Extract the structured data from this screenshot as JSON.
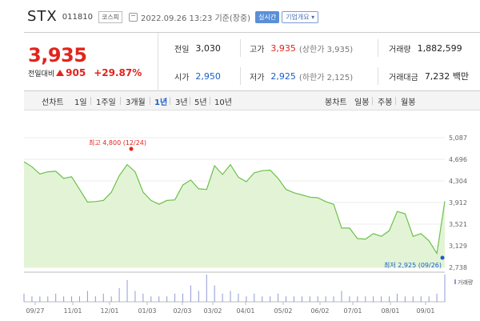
{
  "header": {
    "name": "STX",
    "code": "011810",
    "market": "코스피",
    "datetime": "2022.09.26 13:23 기준(장중)",
    "realtime_btn": "실시간",
    "company_btn": "기업개요 ▾"
  },
  "quote": {
    "price": "3,935",
    "change_label": "전일대비",
    "change": "905",
    "change_pct": "+29.87%",
    "prev_label": "전일",
    "prev": "3,030",
    "high_label": "고가",
    "high": "3,935",
    "upper_limit": "(상한가 3,935)",
    "volume_label": "거래량",
    "volume": "1,882,599",
    "open_label": "시가",
    "open": "2,950",
    "low_label": "저가",
    "low": "2,925",
    "lower_limit": "(하한가 2,125)",
    "amount_label": "거래대금",
    "amount": "7,232 백만"
  },
  "tabs": {
    "line_label": "선차트",
    "periods": [
      "1일",
      "1주일",
      "3개월",
      "1년",
      "3년",
      "5년",
      "10년"
    ],
    "active": "1년",
    "candle_label": "봉차트",
    "candles": [
      "일봉",
      "주봉",
      "월봉"
    ]
  },
  "chart_data": {
    "type": "area",
    "y_ticks": [
      "5,087",
      "4,696",
      "4,304",
      "3,912",
      "3,521",
      "3,129",
      "2,738"
    ],
    "ylim": [
      2738,
      5087
    ],
    "x_ticks": [
      "09/27",
      "11/01",
      "12/01",
      "01/03",
      "02/03",
      "03/02",
      "04/01",
      "05/02",
      "06/02",
      "07/01",
      "08/01",
      "09/01"
    ],
    "high_annotation": "최고 4,800 (12/24)",
    "low_annotation": "최저 2,925 (09/26)",
    "volume_label": "거래량",
    "colors": {
      "line": "#6cc04a",
      "fill": "#e3f4d6",
      "high": "#e2241d",
      "low": "#1a5ec8",
      "volume": "#8f9bd6"
    },
    "x": [
      "09/27",
      "10/01",
      "10/08",
      "10/15",
      "10/22",
      "10/29",
      "11/05",
      "11/12",
      "11/19",
      "11/26",
      "12/03",
      "12/10",
      "12/17",
      "12/24",
      "12/31",
      "01/07",
      "01/14",
      "01/21",
      "01/28",
      "02/04",
      "02/11",
      "02/18",
      "02/25",
      "03/04",
      "03/11",
      "03/18",
      "03/25",
      "04/01",
      "04/08",
      "04/15",
      "04/22",
      "04/29",
      "05/06",
      "05/13",
      "05/20",
      "05/27",
      "06/03",
      "06/10",
      "06/17",
      "06/24",
      "07/01",
      "07/08",
      "07/15",
      "07/22",
      "07/29",
      "08/05",
      "08/12",
      "08/19",
      "08/26",
      "09/02",
      "09/09",
      "09/16",
      "09/23",
      "09/26"
    ],
    "values": [
      4650,
      4560,
      4430,
      4470,
      4480,
      4350,
      4380,
      4150,
      3920,
      3930,
      3950,
      4100,
      4400,
      4600,
      4470,
      4100,
      3950,
      3880,
      3950,
      3960,
      4230,
      4320,
      4160,
      4150,
      4580,
      4420,
      4600,
      4370,
      4290,
      4450,
      4490,
      4500,
      4350,
      4150,
      4090,
      4050,
      4010,
      4000,
      3930,
      3880,
      3450,
      3450,
      3260,
      3250,
      3350,
      3300,
      3400,
      3750,
      3710,
      3300,
      3350,
      3220,
      2990,
      3935
    ],
    "volumes": [
      3,
      2,
      2,
      2,
      3,
      2,
      2,
      2,
      4,
      2,
      3,
      2,
      5,
      8,
      4,
      3,
      2,
      2,
      2,
      3,
      3,
      6,
      4,
      10,
      6,
      3,
      4,
      3,
      2,
      3,
      2,
      2,
      3,
      2,
      2,
      2,
      2,
      2,
      2,
      2,
      4,
      2,
      2,
      2,
      2,
      2,
      2,
      3,
      2,
      2,
      2,
      2,
      3,
      10
    ]
  }
}
